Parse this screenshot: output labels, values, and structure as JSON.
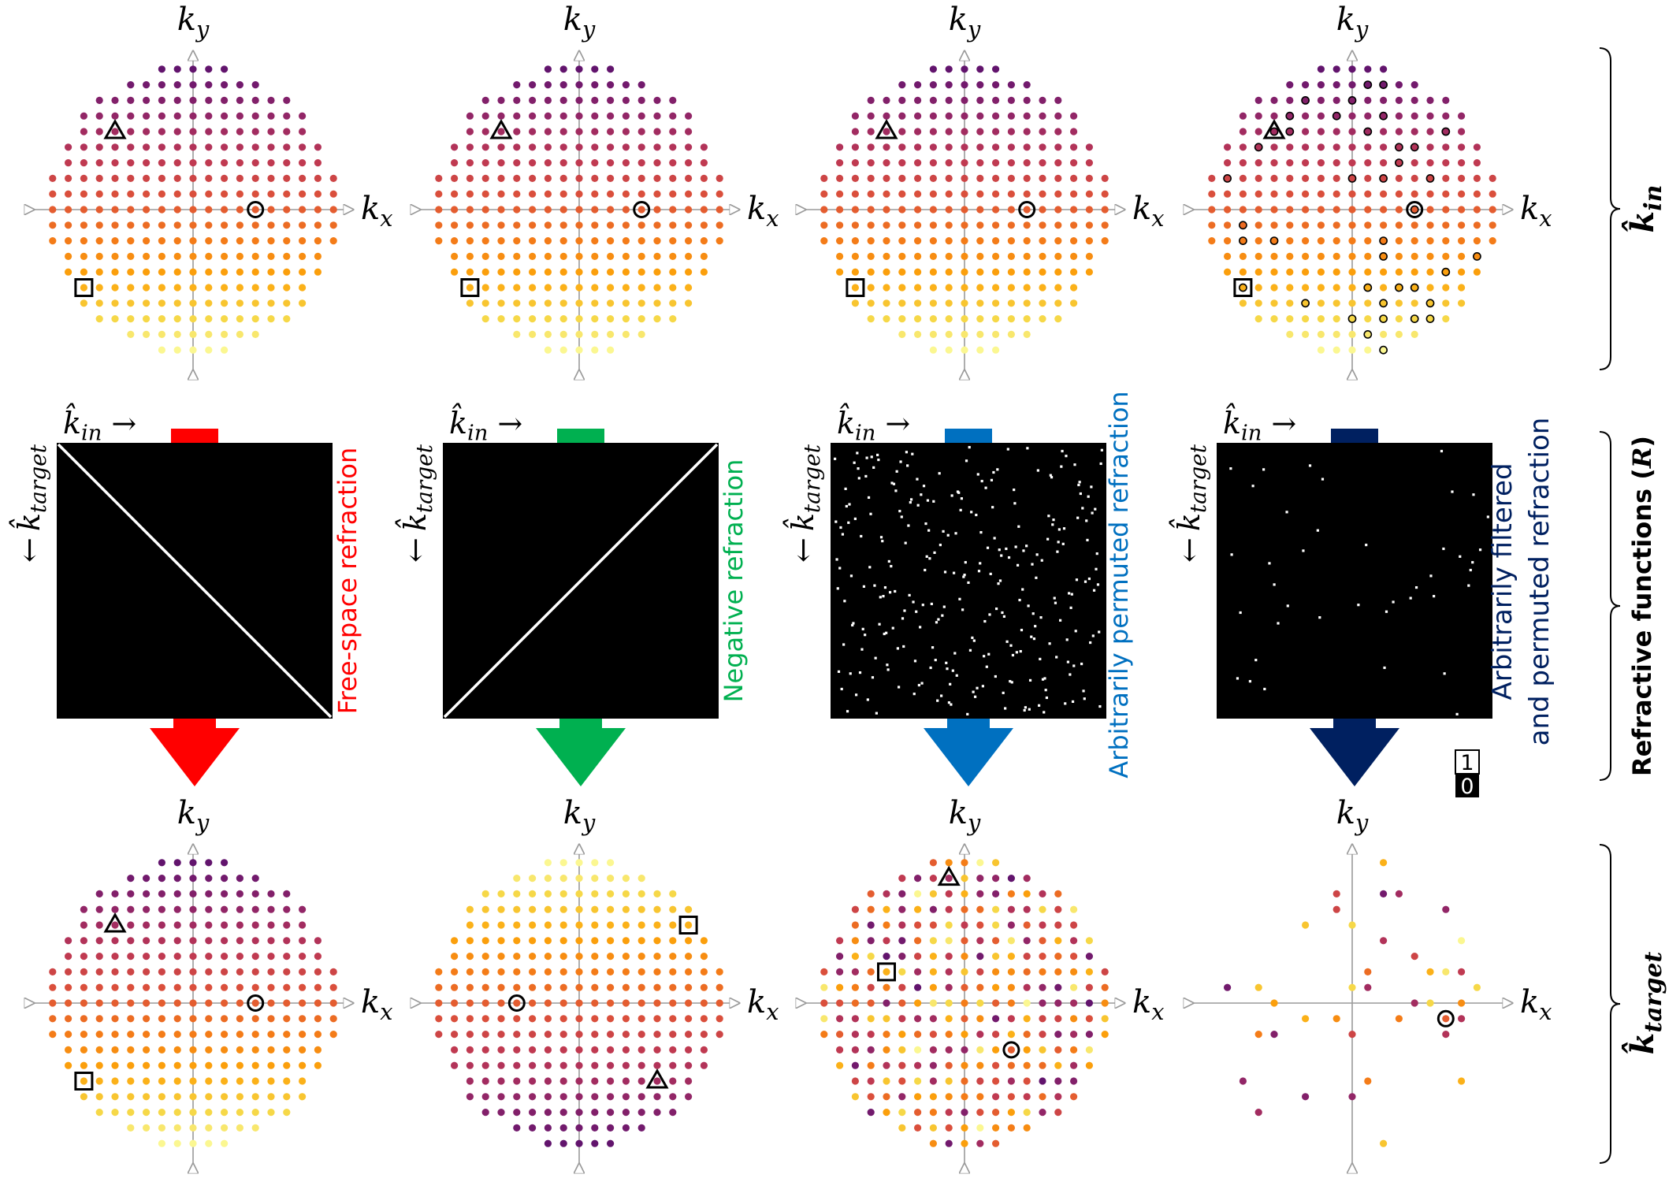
{
  "axis_labels": {
    "kx": {
      "base": "k",
      "sub": "x"
    },
    "ky": {
      "base": "k",
      "sub": "y"
    }
  },
  "matrix_labels": {
    "input": {
      "base": "k̂",
      "sub": "in",
      "arrow": "→"
    },
    "target": {
      "arrow": "←",
      "base": "k̂",
      "sub": "target"
    }
  },
  "panels": [
    {
      "type": "free-space",
      "label_lines": [
        "Free-space refraction"
      ],
      "color": "#ff0000"
    },
    {
      "type": "negative",
      "label_lines": [
        "Negative refraction"
      ],
      "color": "#00b050"
    },
    {
      "type": "permuted",
      "label_lines": [
        "Arbitrarily permuted refraction"
      ],
      "color": "#0070c0"
    },
    {
      "type": "filtered-permuted",
      "label_lines": [
        "Arbitrarily filtered",
        "and permuted refraction"
      ],
      "color": "#002060"
    }
  ],
  "colorbar": {
    "max": "1",
    "min": "0"
  },
  "row_labels": {
    "top": {
      "base": "k̂",
      "sub": "in"
    },
    "middle": {
      "text": "Refractive functions (",
      "var": "R",
      "close": ")"
    },
    "bottom": {
      "base": "k̂",
      "sub": "target"
    }
  },
  "grid": {
    "half_extent": 9,
    "radius_squared": 86,
    "colormap": "inferno"
  },
  "source_markers": {
    "triangle": [
      -5,
      5
    ],
    "circle": [
      4,
      0
    ],
    "square": [
      -7,
      -5
    ]
  },
  "target_markers": [
    {
      "triangle": [
        -5,
        5
      ],
      "circle": [
        4,
        0
      ],
      "square": [
        -7,
        -5
      ]
    },
    {
      "triangle": [
        5,
        -5
      ],
      "circle": [
        -4,
        0
      ],
      "square": [
        7,
        5
      ]
    },
    {
      "triangle": [
        -1,
        8
      ],
      "circle": [
        3,
        -3
      ],
      "square": [
        -5,
        2
      ]
    },
    {
      "circle": [
        6,
        -1
      ]
    }
  ]
}
